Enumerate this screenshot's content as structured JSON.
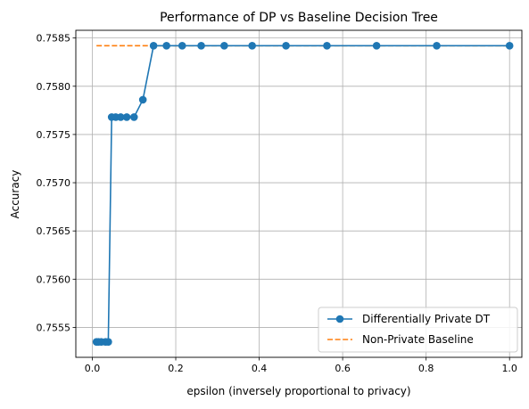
{
  "chart_data": {
    "type": "line",
    "title": "Performance of DP vs Baseline Decision Tree",
    "xlabel": "epsilon (inversely proportional to privacy)",
    "ylabel": "Accuracy",
    "xlim": [
      -0.0395,
      1.0295
    ],
    "ylim": [
      0.75519,
      0.75858
    ],
    "xticks": [
      0.0,
      0.2,
      0.4,
      0.6,
      0.8,
      1.0
    ],
    "xtick_labels": [
      "0.0",
      "0.2",
      "0.4",
      "0.6",
      "0.8",
      "1.0"
    ],
    "yticks": [
      0.7555,
      0.756,
      0.7565,
      0.757,
      0.7575,
      0.758,
      0.7585
    ],
    "ytick_labels": [
      "0.7555",
      "0.7560",
      "0.7565",
      "0.7570",
      "0.7575",
      "0.7580",
      "0.7585"
    ],
    "grid": true,
    "legend_position": "lower right",
    "series": [
      {
        "name": "Differentially Private DT",
        "style": "line-marker",
        "color": "#1f77b4",
        "x": [
          0.01,
          0.0147,
          0.0215,
          0.0316,
          0.0383,
          0.0464,
          0.0562,
          0.0681,
          0.0825,
          0.1,
          0.1212,
          0.1468,
          0.1778,
          0.2154,
          0.261,
          0.3162,
          0.3831,
          0.4642,
          0.5623,
          0.6813,
          0.8254,
          1.0
        ],
        "y": [
          0.75535,
          0.75535,
          0.75535,
          0.75535,
          0.75535,
          0.75768,
          0.75768,
          0.75768,
          0.75768,
          0.75768,
          0.75786,
          0.75842,
          0.75842,
          0.75842,
          0.75842,
          0.75842,
          0.75842,
          0.75842,
          0.75842,
          0.75842,
          0.75842,
          0.75842
        ]
      },
      {
        "name": "Non-Private Baseline",
        "style": "dashed",
        "color": "#ff7f0e",
        "x": [
          0.01,
          1.0
        ],
        "y": [
          0.75842,
          0.75842
        ]
      }
    ]
  }
}
